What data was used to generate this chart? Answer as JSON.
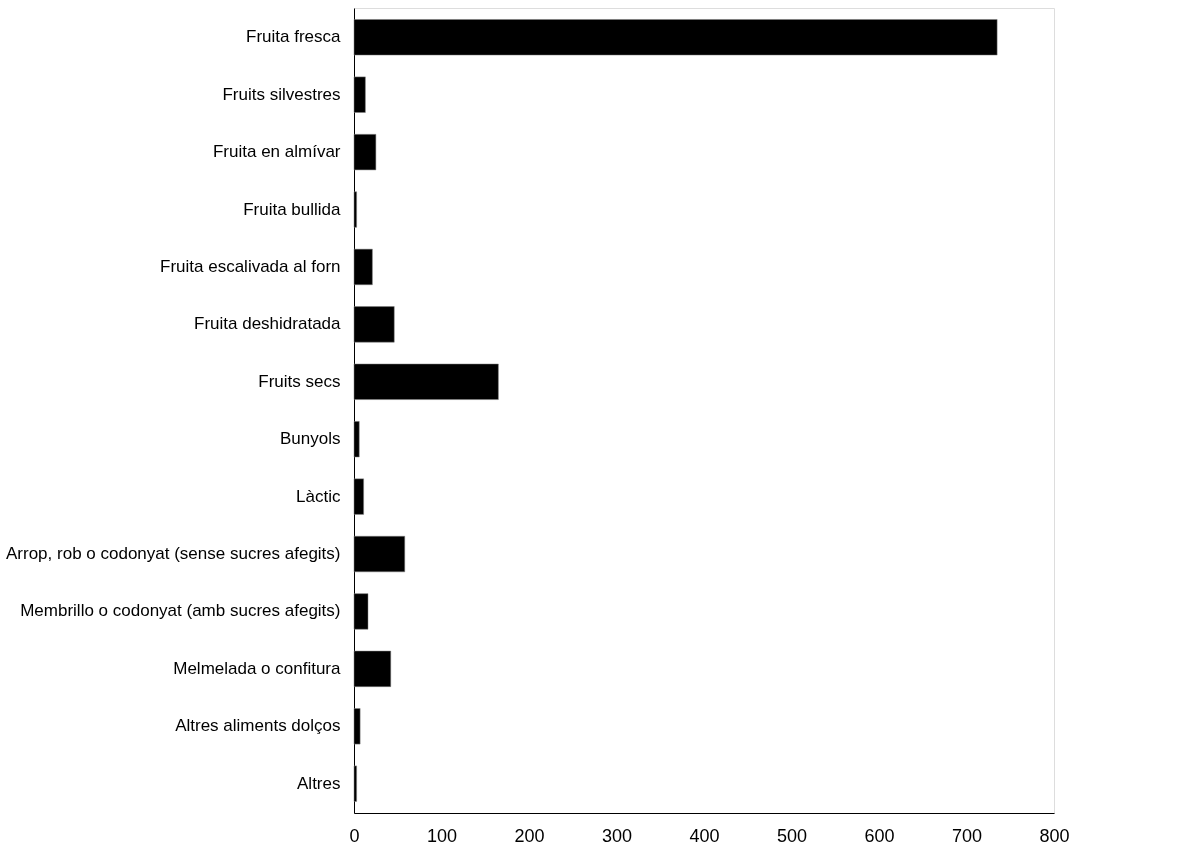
{
  "chart_data": {
    "type": "bar",
    "orientation": "horizontal",
    "categories": [
      "Fruita fresca",
      "Fruits silvestres",
      "Fruita en almívar",
      "Fruita bullida",
      "Fruita escalivada al forn ",
      "Fruita deshidratada",
      "Fruits secs",
      "Bunyols ",
      "Làctic ",
      "Arrop, rob o codonyat (sense sucres afegits)",
      "Membrillo o codonyat (amb sucres afegits)",
      "Melmelada o confitura",
      "Altres aliments dolços ",
      "Altres"
    ],
    "values": [
      735,
      13,
      25,
      3,
      21,
      46,
      165,
      6,
      11,
      58,
      16,
      42,
      7,
      3
    ],
    "color": "#000000",
    "xlim": [
      0,
      800
    ],
    "xticks": [
      0,
      100,
      200,
      300,
      400,
      500,
      600,
      700,
      800
    ],
    "grid": false
  }
}
